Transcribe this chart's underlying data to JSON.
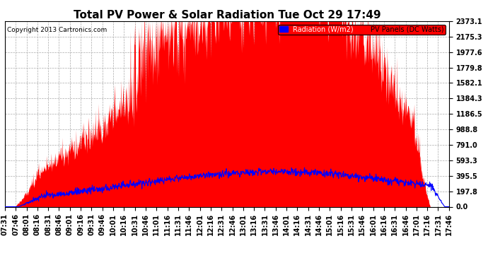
{
  "title": "Total PV Power & Solar Radiation Tue Oct 29 17:49",
  "copyright": "Copyright 2013 Cartronics.com",
  "legend_radiation": "Radiation (W/m2)",
  "legend_pv": "PV Panels (DC Watts)",
  "ymax": 2373.1,
  "yticks": [
    0.0,
    197.8,
    395.5,
    593.3,
    791.0,
    988.8,
    1186.5,
    1384.3,
    1582.1,
    1779.8,
    1977.6,
    2175.3,
    2373.1
  ],
  "bg_color": "#ffffff",
  "plot_bg_color": "#ffffff",
  "grid_color": "#aaaaaa",
  "pv_color": "#ff0000",
  "radiation_color": "#0000ff",
  "title_color": "#000000",
  "title_fontsize": 11,
  "tick_fontsize": 7,
  "copyright_fontsize": 6.5
}
